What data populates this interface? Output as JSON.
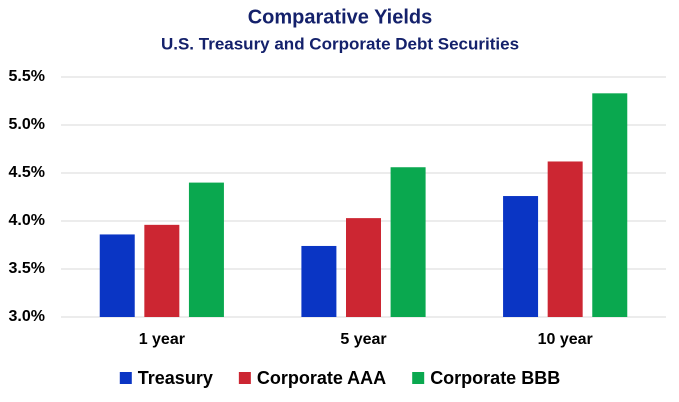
{
  "chart_data": {
    "type": "bar",
    "title": "Comparative Yields",
    "subtitle": "U.S. Treasury and Corporate Debt Securities",
    "categories": [
      "1 year",
      "5 year",
      "10 year"
    ],
    "series": [
      {
        "name": "Treasury",
        "color": "#0a35c4",
        "values": [
          3.86,
          3.74,
          4.26
        ]
      },
      {
        "name": "Corporate AAA",
        "color": "#cc2632",
        "values": [
          3.96,
          4.03,
          4.62
        ]
      },
      {
        "name": "Corporate BBB",
        "color": "#0aa84f",
        "values": [
          4.4,
          4.56,
          5.33
        ]
      }
    ],
    "ylim": [
      3.0,
      5.5
    ],
    "yticks": [
      {
        "value": 3.0,
        "label": "3.0%"
      },
      {
        "value": 3.5,
        "label": "3.5%"
      },
      {
        "value": 4.0,
        "label": "4.0%"
      },
      {
        "value": 4.5,
        "label": "4.5%"
      },
      {
        "value": 5.0,
        "label": "5.0%"
      },
      {
        "value": 5.5,
        "label": "5.5%"
      }
    ],
    "grid": true,
    "legend": "bottom"
  }
}
